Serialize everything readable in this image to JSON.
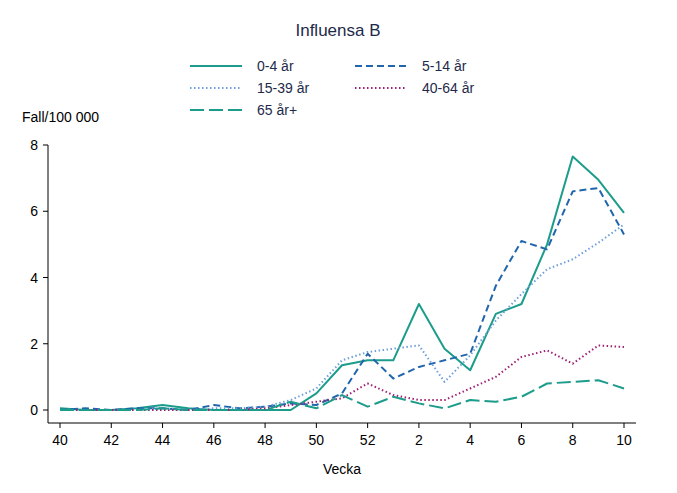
{
  "chart_data": {
    "type": "line",
    "title": "Influensa B",
    "y_label": "Fall/100 000",
    "x_label": "Vecka",
    "categories": [
      "40",
      null,
      "42",
      null,
      "44",
      null,
      "46",
      null,
      "48",
      null,
      "50",
      null,
      "52",
      null,
      "2",
      null,
      "4",
      null,
      "6",
      null,
      "8",
      null,
      "10"
    ],
    "series": [
      {
        "name": "0-4 år",
        "color": "#1c9c8b",
        "line_style": "solid",
        "values": [
          0.05,
          0,
          0,
          0.05,
          0.15,
          0.05,
          0,
          0,
          0,
          0,
          0.5,
          1.35,
          1.5,
          1.5,
          3.2,
          1.85,
          1.2,
          2.9,
          3.2,
          5.0,
          7.65,
          6.95,
          5.95
        ]
      },
      {
        "name": "5-14 år",
        "color": "#2166ac",
        "line_style": "dash",
        "values": [
          0,
          0.05,
          0,
          0.05,
          0.05,
          0,
          0.15,
          0.05,
          0.1,
          0.2,
          0.15,
          0.5,
          1.7,
          0.95,
          1.3,
          1.5,
          1.7,
          3.75,
          5.1,
          4.85,
          6.6,
          6.7,
          5.3
        ]
      },
      {
        "name": "15-39 år",
        "color": "#6fa0d8",
        "line_style": "dot",
        "values": [
          0,
          0,
          0,
          0,
          0.05,
          0,
          0.05,
          0.05,
          0.1,
          0.3,
          0.65,
          1.5,
          1.75,
          1.85,
          1.95,
          0.85,
          1.65,
          2.7,
          3.5,
          4.25,
          4.55,
          5.05,
          5.6
        ]
      },
      {
        "name": "40-64 år",
        "color": "#9e1f76",
        "line_style": "dot",
        "values": [
          0,
          0,
          0,
          0,
          0,
          0,
          0,
          0,
          0.05,
          0.15,
          0.25,
          0.35,
          0.8,
          0.45,
          0.3,
          0.3,
          0.65,
          1.0,
          1.6,
          1.8,
          1.4,
          1.95,
          1.9
        ]
      },
      {
        "name": "65 år+",
        "color": "#1c9c8b",
        "line_style": "longdash",
        "values": [
          0,
          0,
          0,
          0,
          0.05,
          0,
          0,
          0,
          0,
          0.25,
          0.05,
          0.45,
          0.1,
          0.4,
          0.2,
          0.05,
          0.3,
          0.25,
          0.4,
          0.8,
          0.85,
          0.9,
          0.65
        ]
      }
    ],
    "ylim": [
      0,
      8
    ],
    "yticks": [
      0,
      2,
      4,
      6,
      8
    ],
    "grid": false,
    "legend": "top"
  }
}
